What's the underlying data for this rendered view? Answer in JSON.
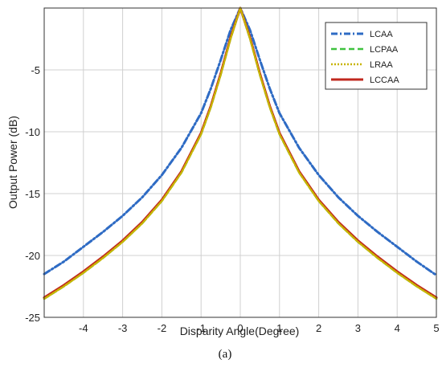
{
  "chart_data": {
    "type": "line",
    "title": "",
    "xlabel": "Disparity Angle(Degree)",
    "ylabel": "Output Power (dB)",
    "caption": "(a)",
    "xlim": [
      -5,
      5
    ],
    "ylim": [
      -25,
      0
    ],
    "xticks": [
      -4,
      -3,
      -2,
      -1,
      0,
      1,
      2,
      3,
      4,
      5
    ],
    "yticks": [
      -5,
      -10,
      -15,
      -20,
      -25
    ],
    "grid": true,
    "legend_position": "top-right",
    "x": [
      -5,
      -4.5,
      -4,
      -3.5,
      -3,
      -2.5,
      -2,
      -1.5,
      -1,
      -0.75,
      -0.5,
      -0.25,
      0,
      0.25,
      0.5,
      0.75,
      1,
      1.5,
      2,
      2.5,
      3,
      3.5,
      4,
      4.5,
      5
    ],
    "series": [
      {
        "name": "LCAA",
        "color": "#2e6bc4",
        "dash": "dashdot",
        "values": [
          -21.5,
          -20.5,
          -19.3,
          -18.1,
          -16.8,
          -15.3,
          -13.5,
          -11.3,
          -8.5,
          -6.5,
          -4.2,
          -1.8,
          0,
          -1.8,
          -4.2,
          -6.5,
          -8.5,
          -11.3,
          -13.5,
          -15.3,
          -16.8,
          -18.1,
          -19.3,
          -20.5,
          -21.6
        ]
      },
      {
        "name": "LCPAA",
        "color": "#3fc23f",
        "dash": "dashed",
        "values": [
          -23.5,
          -22.5,
          -21.4,
          -20.2,
          -18.9,
          -17.4,
          -15.6,
          -13.3,
          -10.2,
          -8.0,
          -5.4,
          -2.5,
          0,
          -2.5,
          -5.4,
          -8.0,
          -10.2,
          -13.3,
          -15.6,
          -17.4,
          -18.9,
          -20.2,
          -21.4,
          -22.5,
          -23.5
        ]
      },
      {
        "name": "LRAA",
        "color": "#c8b400",
        "dash": "dotted",
        "values": [
          -23.5,
          -22.5,
          -21.4,
          -20.2,
          -18.9,
          -17.4,
          -15.6,
          -13.3,
          -10.2,
          -8.0,
          -5.4,
          -2.5,
          0,
          -2.5,
          -5.4,
          -8.0,
          -10.2,
          -13.3,
          -15.6,
          -17.4,
          -18.9,
          -20.2,
          -21.4,
          -22.5,
          -23.5
        ]
      },
      {
        "name": "LCCAA",
        "color": "#c0281e",
        "dash": "solid",
        "values": [
          -23.4,
          -22.4,
          -21.3,
          -20.1,
          -18.8,
          -17.3,
          -15.5,
          -13.2,
          -10.1,
          -7.9,
          -5.3,
          -2.4,
          0,
          -2.4,
          -5.3,
          -7.9,
          -10.1,
          -13.2,
          -15.5,
          -17.3,
          -18.8,
          -20.1,
          -21.3,
          -22.4,
          -23.4
        ]
      }
    ]
  }
}
